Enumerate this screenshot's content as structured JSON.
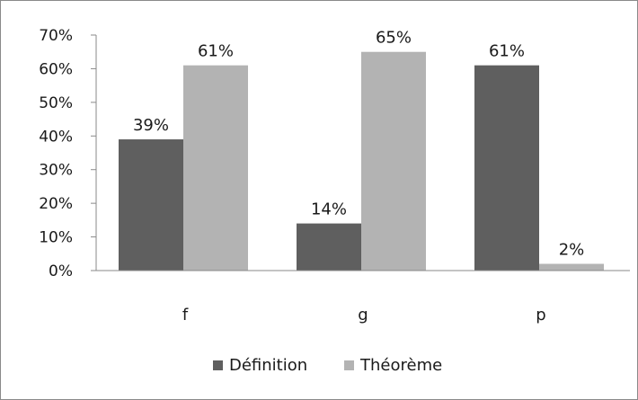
{
  "chart_data": {
    "type": "bar",
    "title": "",
    "xlabel": "",
    "ylabel": "",
    "categories": [
      "f",
      "g",
      "p"
    ],
    "series": [
      {
        "name": "Définition",
        "values": [
          0.39,
          0.14,
          0.61
        ],
        "color": "#5f5f5f"
      },
      {
        "name": "Théorème",
        "values": [
          0.61,
          0.65,
          0.02
        ],
        "color": "#b3b3b3"
      }
    ],
    "data_labels": [
      [
        "39%",
        "14%",
        "61%"
      ],
      [
        "61%",
        "65%",
        "2%"
      ]
    ],
    "ylim": [
      0,
      0.7
    ],
    "yticks": [
      0,
      0.1,
      0.2,
      0.3,
      0.4,
      0.5,
      0.6,
      0.7
    ],
    "ytick_labels": [
      "0%",
      "10%",
      "20%",
      "30%",
      "40%",
      "50%",
      "60%",
      "70%"
    ],
    "grid": false,
    "legend_position": "bottom"
  }
}
